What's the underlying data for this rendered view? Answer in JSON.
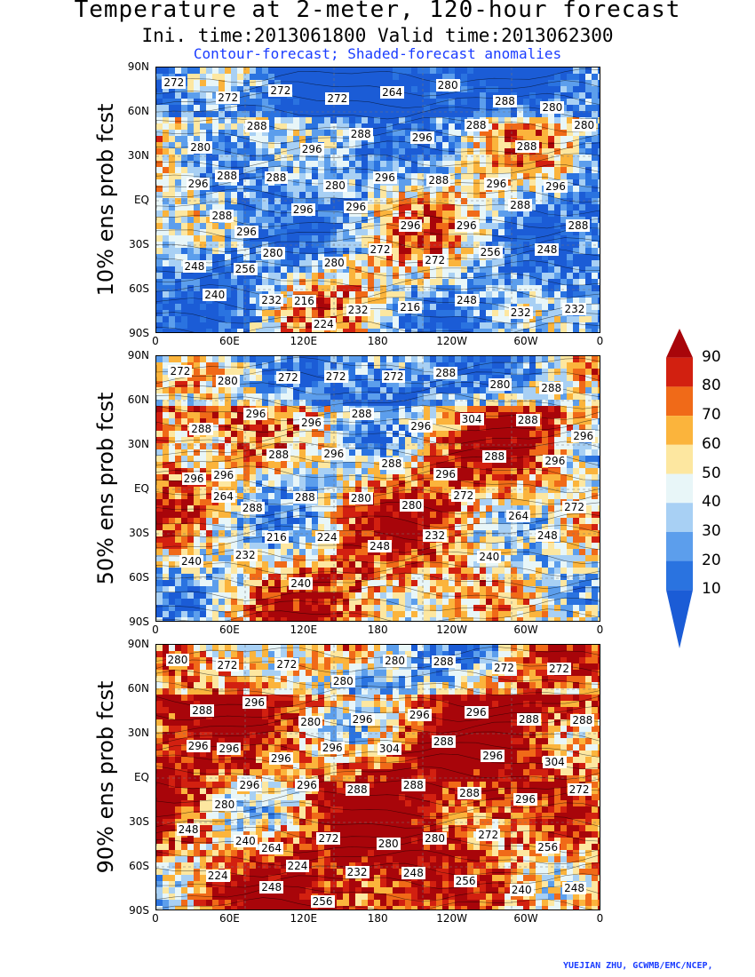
{
  "header": {
    "title": "Temperature at 2-meter, 120-hour forecast",
    "times": "Ini. time:2013061800    Valid time:2013062300",
    "subtitle": "Contour-forecast; Shaded-forecast anomalies"
  },
  "axes": {
    "lat_ticks": [
      "90N",
      "60N",
      "30N",
      "EQ",
      "30S",
      "60S",
      "90S"
    ],
    "lon_ticks": [
      "0",
      "60E",
      "120E",
      "180",
      "120W",
      "60W",
      "0"
    ]
  },
  "panels": [
    {
      "label": "10% ens prob fcst",
      "warm_level": 0.35,
      "contour_labels": [
        "272",
        "272",
        "272",
        "272",
        "264",
        "280",
        "288",
        "280",
        "280",
        "288",
        "296",
        "288",
        "296",
        "288",
        "288",
        "280",
        "288",
        "288",
        "280",
        "296",
        "288",
        "296",
        "296",
        "296",
        "296",
        "296",
        "296",
        "296",
        "296",
        "288",
        "288",
        "288",
        "280",
        "280",
        "272",
        "272",
        "256",
        "248",
        "248",
        "256",
        "216",
        "232",
        "216",
        "248",
        "232",
        "232",
        "240",
        "232",
        "224"
      ]
    },
    {
      "label": "50% ens prob fcst",
      "warm_level": 0.62,
      "contour_labels": [
        "272",
        "280",
        "272",
        "272",
        "272",
        "288",
        "280",
        "288",
        "288",
        "296",
        "296",
        "288",
        "296",
        "304",
        "288",
        "296",
        "296",
        "288",
        "296",
        "288",
        "296",
        "288",
        "296",
        "296",
        "288",
        "288",
        "280",
        "280",
        "272",
        "264",
        "272",
        "264",
        "216",
        "224",
        "248",
        "232",
        "240",
        "248",
        "240",
        "232",
        "240"
      ]
    },
    {
      "label": "90% ens prob fcst",
      "warm_level": 0.85,
      "contour_labels": [
        "280",
        "272",
        "272",
        "280",
        "280",
        "288",
        "272",
        "272",
        "288",
        "296",
        "280",
        "296",
        "296",
        "296",
        "288",
        "288",
        "296",
        "296",
        "296",
        "304",
        "288",
        "296",
        "304",
        "296",
        "296",
        "296",
        "288",
        "288",
        "288",
        "296",
        "272",
        "280",
        "264",
        "272",
        "280",
        "280",
        "272",
        "256",
        "248",
        "240",
        "224",
        "232",
        "248",
        "256",
        "240",
        "248",
        "224",
        "248",
        "256"
      ]
    }
  ],
  "colorbar": {
    "levels": [
      "90",
      "80",
      "70",
      "60",
      "50",
      "40",
      "30",
      "20",
      "10"
    ],
    "colors": [
      "#a8050a",
      "#d22010",
      "#f06a18",
      "#fbb43c",
      "#fde7a0",
      "#e8f6f8",
      "#a8d0f4",
      "#5c9eec",
      "#2a73e0",
      "#1b5cd6"
    ]
  },
  "credit": "YUEJIAN ZHU, GCWMB/EMC/NCEP,"
}
